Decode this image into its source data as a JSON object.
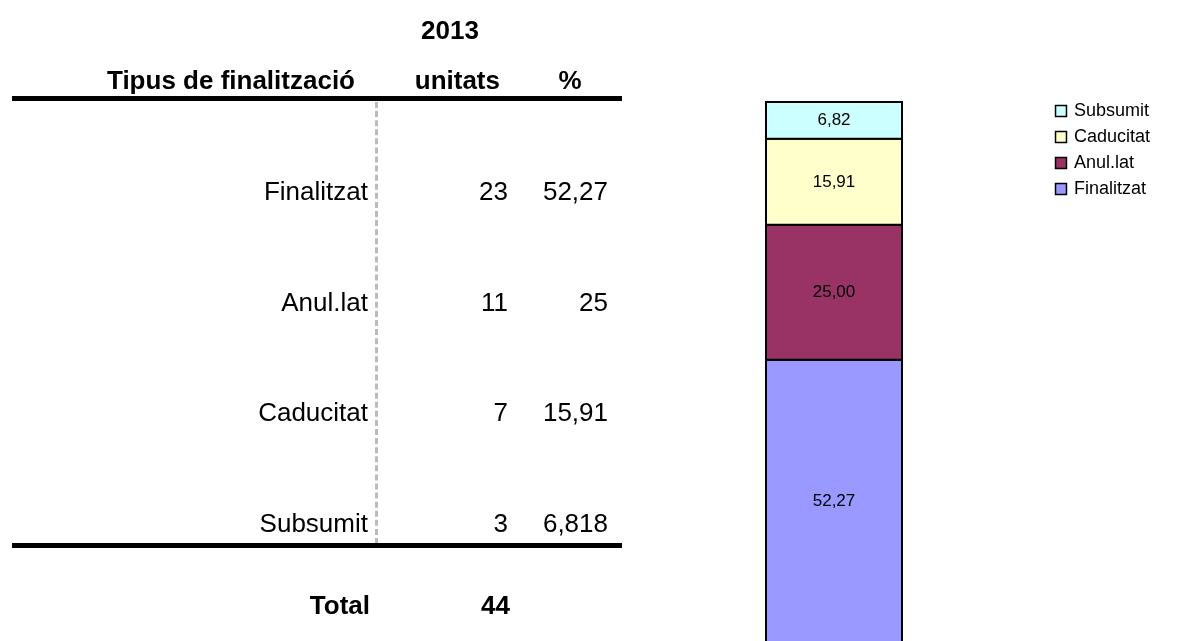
{
  "chart_data": [
    {
      "type": "other",
      "annotations": [
        "2013",
        "Tipus de finalització",
        "unitats",
        "%",
        "Finalitzat",
        "23",
        "52,27",
        "Anul.lat",
        "11",
        "25",
        "Caducitat",
        "7",
        "15,91",
        "Subsumit",
        "3",
        "6,818",
        "Total",
        "44"
      ]
    },
    {
      "type": "bar",
      "stacked": true,
      "categories": [
        null
      ],
      "legend": "right",
      "series": [
        {
          "name": "Finalitzat",
          "color": "#9999ff",
          "values": [
            52.27
          ],
          "value_labels": [
            "52,27"
          ]
        },
        {
          "name": "Anul.lat",
          "color": "#993366",
          "values": [
            25
          ],
          "value_labels": [
            "25,00"
          ]
        },
        {
          "name": "Caducitat",
          "color": "#ffffcc",
          "values": [
            15.91
          ],
          "value_labels": [
            "15,91"
          ]
        },
        {
          "name": "Subsumit",
          "color": "#ccffff",
          "values": [
            6.82
          ],
          "value_labels": [
            "6,82"
          ]
        }
      ]
    }
  ]
}
